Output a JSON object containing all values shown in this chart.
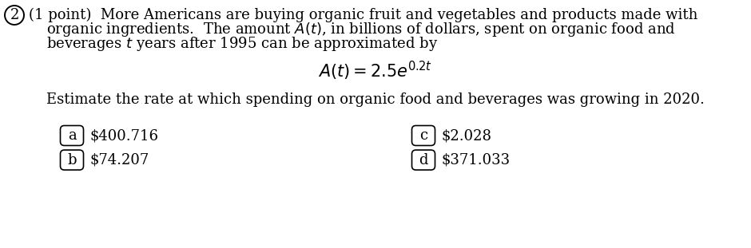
{
  "bg_color": "#ffffff",
  "circle_number": "2",
  "point_label": "(1 point)",
  "para_text_line1": "More Americans are buying organic fruit and vegetables and products made with",
  "para_text_line2": "organic ingredients.  The amount $A(t)$, in billions of dollars, spent on organic food and",
  "para_text_line3": "beverages $t$ years after 1995 can be approximated by",
  "formula": "$A(t) = 2.5e^{0.2t}$",
  "question": "Estimate the rate at which spending on organic food and beverages was growing in 2020.",
  "options": [
    {
      "label": "a",
      "text": "$400.716",
      "col": 0
    },
    {
      "label": "b",
      "text": "$74.207",
      "col": 0
    },
    {
      "label": "c",
      "text": "$2.028",
      "col": 1
    },
    {
      "label": "d",
      "text": "$371.033",
      "col": 1
    }
  ],
  "font_size_body": 13.0,
  "font_size_formula": 15.0,
  "font_size_options": 13.0,
  "font_family": "DejaVu Serif"
}
